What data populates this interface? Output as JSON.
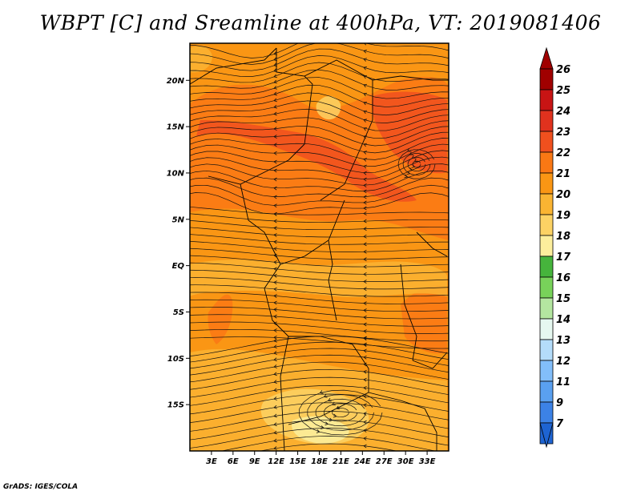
{
  "title": "WBPT [C] and Sreamline at 400hPa, VT: 2019081406",
  "credit": "GrADS: IGES/COLA",
  "map": {
    "lon_range": [
      0,
      36
    ],
    "lat_range": [
      -20,
      24
    ],
    "lat_ticks": [
      {
        "value": 20,
        "label": "20N"
      },
      {
        "value": 15,
        "label": "15N"
      },
      {
        "value": 10,
        "label": "10N"
      },
      {
        "value": 5,
        "label": "5N"
      },
      {
        "value": 0,
        "label": "EQ"
      },
      {
        "value": -5,
        "label": "5S"
      },
      {
        "value": -10,
        "label": "10S"
      },
      {
        "value": -15,
        "label": "15S"
      }
    ],
    "lon_ticks": [
      {
        "value": 3,
        "label": "3E"
      },
      {
        "value": 6,
        "label": "6E"
      },
      {
        "value": 9,
        "label": "9E"
      },
      {
        "value": 12,
        "label": "12E"
      },
      {
        "value": 15,
        "label": "15E"
      },
      {
        "value": 18,
        "label": "18E"
      },
      {
        "value": 21,
        "label": "21E"
      },
      {
        "value": 24,
        "label": "24E"
      },
      {
        "value": 27,
        "label": "27E"
      },
      {
        "value": 30,
        "label": "30E"
      },
      {
        "value": 33,
        "label": "33E"
      }
    ]
  },
  "colorbar": {
    "labels": [
      "26",
      "25",
      "24",
      "23",
      "22",
      "21",
      "20",
      "19",
      "18",
      "17",
      "16",
      "15",
      "14",
      "13",
      "12",
      "11",
      "9",
      "7"
    ],
    "colors": [
      "#a00000",
      "#c81414",
      "#e0321e",
      "#f0501e",
      "#fa7814",
      "#fa9614",
      "#fab432",
      "#fcd264",
      "#fcee9c",
      "#46b43c",
      "#78d25a",
      "#b4e6a0",
      "#e6f8f0",
      "#b4dcfa",
      "#82befa",
      "#5aa0f0",
      "#3c82e6",
      "#1e64d2"
    ],
    "top_cap_color": "#a00000",
    "bottom_cap_color": "#1e64d2"
  },
  "field_colors": {
    "c21": "#fa9614",
    "c22": "#fa7814",
    "c23": "#f0501e",
    "c20": "#fab432",
    "c19": "#fcd264",
    "c18": "#fcee9c"
  }
}
